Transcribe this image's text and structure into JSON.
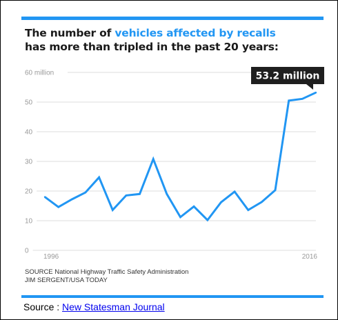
{
  "colors": {
    "accent": "#2196F3",
    "title_text": "#1a1a1a",
    "line": "#2196F3",
    "grid": "#dddddd",
    "tick_text": "#999999",
    "callout_bg": "#1f1f1f",
    "callout_text": "#ffffff",
    "link": "#0000EE"
  },
  "title": {
    "part1": "The number of ",
    "highlight": "vehicles affected by recalls",
    "part2": "has more than tripled in the past 20 years:"
  },
  "callout": {
    "label": "53.2 million"
  },
  "source_lines": [
    "SOURCE National Highway Traffic Safety Administration",
    "JIM SERGENT/USA TODAY"
  ],
  "footer": {
    "prefix": "Source : ",
    "link_text": "New Statesman Journal"
  },
  "chart_data": {
    "type": "line",
    "title": "The number of vehicles affected by recalls has more than tripled in the past 20 years:",
    "xlabel": "",
    "ylabel": "",
    "ylim": [
      0,
      60
    ],
    "yticks": [
      0,
      10,
      20,
      30,
      40,
      50,
      60
    ],
    "ytick_labels": [
      "0",
      "10",
      "20",
      "30",
      "40",
      "50",
      "60 million"
    ],
    "xtick_labels": [
      "1996",
      "2016"
    ],
    "grid": true,
    "x": [
      1996,
      1997,
      1998,
      1999,
      2000,
      2001,
      2002,
      2003,
      2004,
      2005,
      2006,
      2007,
      2008,
      2009,
      2010,
      2011,
      2012,
      2013,
      2014,
      2015,
      2016
    ],
    "series": [
      {
        "values": [
          18,
          14.6,
          17.2,
          19.5,
          24.6,
          13.6,
          18.5,
          19,
          30.8,
          19,
          11.2,
          14.8,
          10.2,
          16.2,
          19.8,
          13.6,
          16.3,
          20.3,
          50.5,
          51.1,
          53.2
        ]
      }
    ],
    "annotations": [
      {
        "text": "53.2 million",
        "x": 2016,
        "y": 53.2
      }
    ]
  }
}
